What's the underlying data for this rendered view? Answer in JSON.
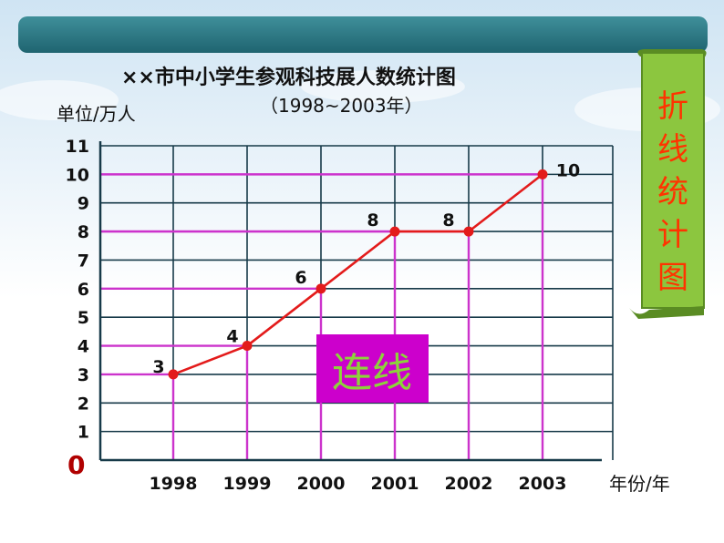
{
  "chart_data": {
    "type": "line",
    "title": "××市中小学生参观科技展人数统计图",
    "subtitle": "（1998~2003年）",
    "ylabel": "单位/万人",
    "xlabel": "年份/年",
    "origin_label": "0",
    "ylim": [
      0,
      11
    ],
    "yticks": [
      1,
      2,
      3,
      4,
      5,
      6,
      7,
      8,
      9,
      10,
      11
    ],
    "categories": [
      "1998",
      "1999",
      "2000",
      "2001",
      "2002",
      "2003"
    ],
    "series": [
      {
        "values": [
          3,
          4,
          6,
          8,
          8,
          10
        ],
        "color": "#e31b1b"
      }
    ],
    "grid": true,
    "grid_color": "#173a49",
    "highlight_color": "#cc33cc"
  },
  "banner_text": "折线统计图",
  "overlay_label": "连线",
  "colors": {
    "header_bar": "#2e7d89",
    "banner_fill": "#8cc63f",
    "banner_text": "#ff3300",
    "overlay_bg": "#cc00cc",
    "overlay_text": "#8cd43a",
    "origin_text": "#b00000"
  }
}
